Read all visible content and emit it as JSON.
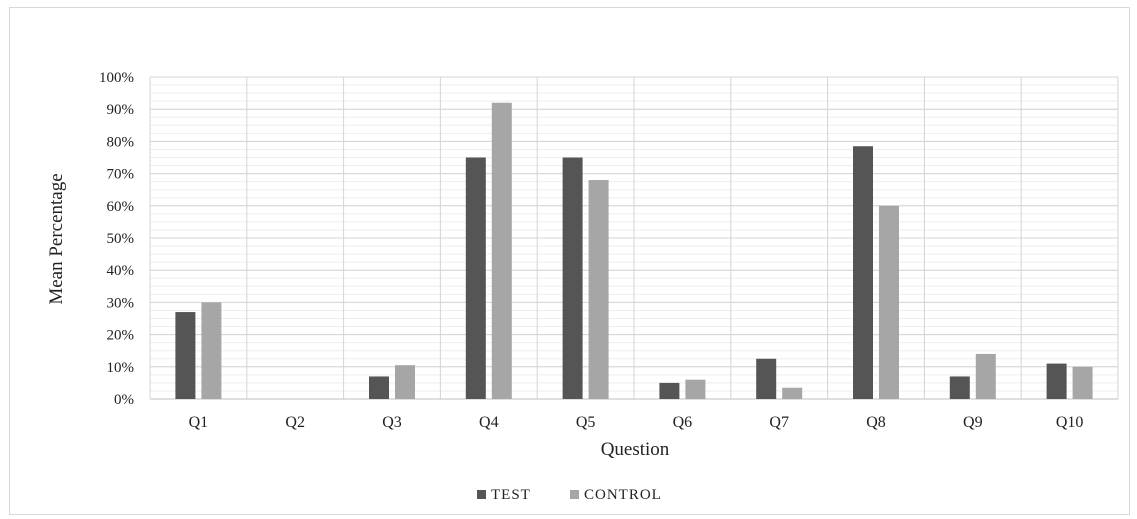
{
  "chart_data": {
    "type": "bar",
    "title": "",
    "xlabel": "Question",
    "ylabel": "Mean Percentage",
    "categories": [
      "Q1",
      "Q2",
      "Q3",
      "Q4",
      "Q5",
      "Q6",
      "Q7",
      "Q8",
      "Q9",
      "Q10"
    ],
    "series": [
      {
        "name": "TEST",
        "color": "#555555",
        "values": [
          27,
          0,
          7,
          75,
          75,
          5,
          12.5,
          78.5,
          7,
          11
        ]
      },
      {
        "name": "CONTROL",
        "color": "#a6a6a6",
        "values": [
          30,
          0,
          10.5,
          92,
          68,
          6,
          3.5,
          60,
          14,
          10
        ]
      }
    ],
    "ylim": [
      0,
      100
    ],
    "yticks": [
      0,
      10,
      20,
      30,
      40,
      50,
      60,
      70,
      80,
      90,
      100
    ],
    "ytick_suffix": "%",
    "grid": true,
    "legend_position": "bottom"
  }
}
